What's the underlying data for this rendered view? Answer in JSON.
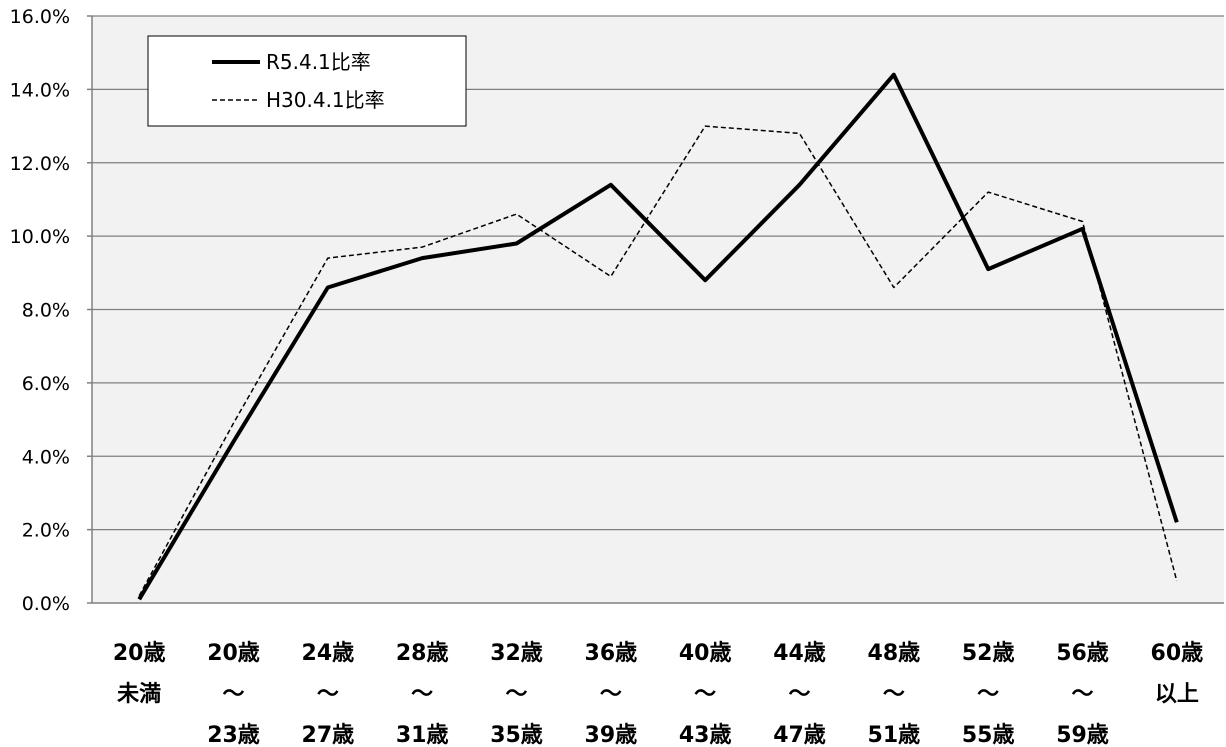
{
  "chart_data": {
    "type": "line",
    "title": "",
    "xlabel": "",
    "ylabel": "",
    "ylim": [
      0,
      0.16
    ],
    "yticks": [
      0.0,
      0.02,
      0.04,
      0.06,
      0.08,
      0.1,
      0.12,
      0.14,
      0.16
    ],
    "ytick_labels": [
      "0.0%",
      "2.0%",
      "4.0%",
      "6.0%",
      "8.0%",
      "10.0%",
      "12.0%",
      "14.0%",
      "16.0%"
    ],
    "grid": "horizontal",
    "legend_position": "top-left",
    "categories": [
      [
        "20歳",
        "未満"
      ],
      [
        "20歳",
        "～",
        "23歳"
      ],
      [
        "24歳",
        "～",
        "27歳"
      ],
      [
        "28歳",
        "～",
        "31歳"
      ],
      [
        "32歳",
        "～",
        "35歳"
      ],
      [
        "36歳",
        "～",
        "39歳"
      ],
      [
        "40歳",
        "～",
        "43歳"
      ],
      [
        "44歳",
        "～",
        "47歳"
      ],
      [
        "48歳",
        "～",
        "51歳"
      ],
      [
        "52歳",
        "～",
        "55歳"
      ],
      [
        "56歳",
        "～",
        "59歳"
      ],
      [
        "60歳",
        "以上"
      ]
    ],
    "series": [
      {
        "name": "R5.4.1比率",
        "style": "solid",
        "color": "#000000",
        "values": [
          0.001,
          0.044,
          0.086,
          0.094,
          0.098,
          0.114,
          0.088,
          0.114,
          0.144,
          0.091,
          0.102,
          0.022
        ]
      },
      {
        "name": "H30.4.1比率",
        "style": "dashed",
        "color": "#000000",
        "values": [
          0.002,
          0.049,
          0.094,
          0.097,
          0.106,
          0.089,
          0.13,
          0.128,
          0.086,
          0.112,
          0.104,
          0.006
        ]
      }
    ],
    "plot_background": "#f2f2f2",
    "gridline_color": "#808080"
  }
}
